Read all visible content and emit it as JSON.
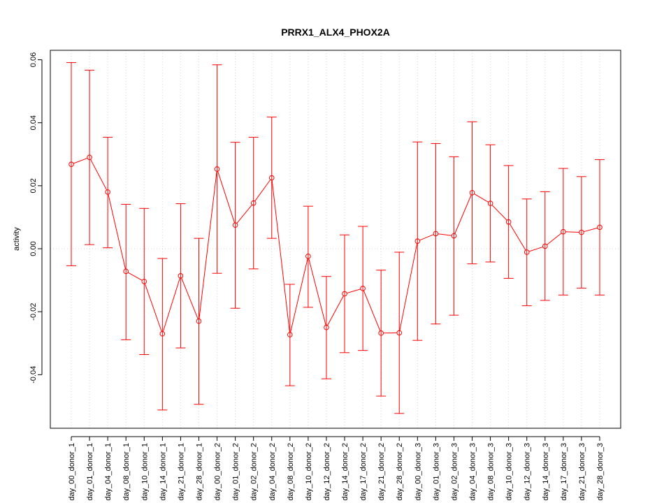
{
  "chart_data": {
    "type": "line",
    "title": "PRRX1_ALX4_PHOX2A",
    "xlabel": "",
    "ylabel": "activity",
    "ylim": [
      -0.057,
      0.063
    ],
    "yticks": [
      -0.04,
      -0.02,
      0.0,
      0.02,
      0.04,
      0.06
    ],
    "ytick_labels": [
      "-0.04",
      "-0.02",
      "0.00",
      "0.02",
      "0.04",
      "0.06"
    ],
    "grid": true,
    "color": "#ff0000",
    "categories": [
      "day_00_donor_1",
      "day_01_donor_1",
      "day_04_donor_1",
      "day_08_donor_1",
      "day_10_donor_1",
      "day_14_donor_1",
      "day_21_donor_1",
      "day_28_donor_1",
      "day_00_donor_2",
      "day_01_donor_2",
      "day_02_donor_2",
      "day_04_donor_2",
      "day_08_donor_2",
      "day_10_donor_2",
      "day_12_donor_2",
      "day_14_donor_2",
      "day_17_donor_2",
      "day_21_donor_2",
      "day_28_donor_2",
      "day_00_donor_3",
      "day_01_donor_3",
      "day_02_donor_3",
      "day_04_donor_3",
      "day_08_donor_3",
      "day_10_donor_3",
      "day_12_donor_3",
      "day_14_donor_3",
      "day_17_donor_3",
      "day_21_donor_3",
      "day_28_donor_3"
    ],
    "values": [
      0.0268,
      0.029,
      0.018,
      -0.0072,
      -0.0104,
      -0.027,
      -0.0086,
      -0.023,
      0.0253,
      0.0075,
      0.0145,
      0.0225,
      -0.0273,
      -0.0024,
      -0.025,
      -0.0143,
      -0.0126,
      -0.0268,
      -0.0267,
      0.0024,
      0.0048,
      0.0041,
      0.0178,
      0.0144,
      0.0085,
      -0.0011,
      0.0008,
      0.0054,
      0.0052,
      0.0068
    ],
    "upper": [
      0.0591,
      0.0567,
      0.0354,
      0.0141,
      0.0128,
      -0.0031,
      0.0143,
      0.0033,
      0.0584,
      0.0338,
      0.0354,
      0.0418,
      -0.0113,
      0.0135,
      -0.0088,
      0.0044,
      0.0071,
      -0.0068,
      -0.0011,
      0.0339,
      0.0334,
      0.0292,
      0.0403,
      0.033,
      0.0264,
      0.0158,
      0.0181,
      0.0255,
      0.0229,
      0.0283
    ],
    "lower": [
      -0.0054,
      0.0013,
      0.0003,
      -0.0289,
      -0.0336,
      -0.0512,
      -0.0315,
      -0.0494,
      -0.0078,
      -0.0189,
      -0.0064,
      0.0033,
      -0.0435,
      -0.0186,
      -0.0413,
      -0.033,
      -0.0323,
      -0.0468,
      -0.0523,
      -0.0291,
      -0.0239,
      -0.0211,
      -0.0048,
      -0.0042,
      -0.0094,
      -0.0181,
      -0.0164,
      -0.0147,
      -0.0125,
      -0.0147
    ]
  }
}
